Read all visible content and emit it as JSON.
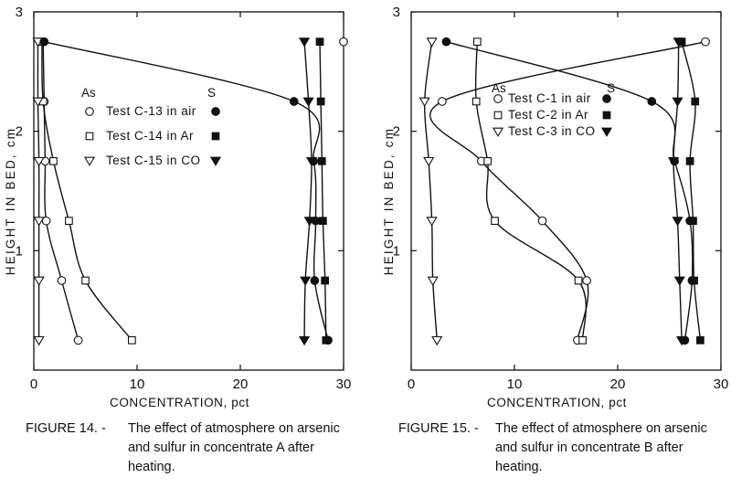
{
  "chart_data": [
    {
      "type": "line",
      "figure_label": "FIGURE 14. -",
      "caption": "The effect of atmosphere on arsenic and sulfur in concentrate A after heating.",
      "xlabel": "CONCENTRATION, pct",
      "ylabel": "HEIGHT IN BED, cm",
      "xlim": [
        0,
        30
      ],
      "ylim": [
        0,
        3
      ],
      "x_ticks": [
        0,
        10,
        20,
        30
      ],
      "y_ticks": [
        1,
        2,
        3
      ],
      "x_tick_labels": [
        "0",
        "10",
        "20",
        "30"
      ],
      "y_tick_labels": [
        "1",
        "2",
        "3"
      ],
      "legend": {
        "as_header": "As",
        "s_header": "S",
        "entries": [
          "Test C-13 in air",
          "Test C-14 in Ar",
          "Test C-15 in CO"
        ]
      },
      "series": [
        {
          "element": "As",
          "test": 0,
          "marker": "circle-open",
          "x": [
            0.9,
            1.0,
            1.1,
            1.2,
            2.7,
            4.3
          ],
          "y": [
            2.75,
            2.25,
            1.75,
            1.25,
            0.75,
            0.25
          ]
        },
        {
          "element": "As",
          "test": 1,
          "marker": "square-open",
          "x": [
            0.8,
            0.9,
            1.9,
            3.4,
            5.0,
            9.5
          ],
          "y": [
            2.75,
            2.25,
            1.75,
            1.25,
            0.75,
            0.25
          ]
        },
        {
          "element": "As",
          "test": 2,
          "marker": "triangle-open",
          "x": [
            0.4,
            0.4,
            0.5,
            0.5,
            0.5,
            0.5
          ],
          "y": [
            2.75,
            2.25,
            1.75,
            1.25,
            0.75,
            0.25
          ]
        },
        {
          "element": "S",
          "test": 0,
          "marker": "circle-filled",
          "x": [
            1.0,
            25.2,
            27.1,
            27.3,
            27.2,
            28.5
          ],
          "y": [
            2.75,
            2.25,
            1.75,
            1.25,
            0.75,
            0.25
          ]
        },
        {
          "element": "S",
          "test": 1,
          "marker": "square-filled",
          "x": [
            27.7,
            27.8,
            27.9,
            28.0,
            28.2,
            28.3
          ],
          "y": [
            2.75,
            2.25,
            1.75,
            1.25,
            0.75,
            0.25
          ]
        },
        {
          "element": "S",
          "test": 2,
          "marker": "triangle-filled",
          "x": [
            26.2,
            26.6,
            26.9,
            26.7,
            26.3,
            26.2
          ],
          "y": [
            2.75,
            2.25,
            1.75,
            1.25,
            0.75,
            0.25
          ]
        }
      ],
      "annotation_point": {
        "x": 30.0,
        "y": 2.75,
        "marker": "circle-open"
      }
    },
    {
      "type": "line",
      "figure_label": "FIGURE 15. -",
      "caption": "The effect of atmosphere on arsenic and sulfur in concentrate B after heating.",
      "xlabel": "CONCENTRATION, pct",
      "ylabel": "HEIGHT IN BED, cm",
      "xlim": [
        0,
        30
      ],
      "ylim": [
        0,
        3
      ],
      "x_ticks": [
        0,
        10,
        20,
        30
      ],
      "y_ticks": [
        1,
        2,
        3
      ],
      "x_tick_labels": [
        "0",
        "10",
        "20",
        "30"
      ],
      "y_tick_labels": [
        "1",
        "2",
        "3"
      ],
      "legend": {
        "as_header": "As",
        "s_header": "S",
        "entries": [
          "Test C-1 in air",
          "Test C-2 in Ar",
          "Test C-3 in CO"
        ]
      },
      "series": [
        {
          "element": "As",
          "test": 0,
          "marker": "circle-open",
          "x": [
            28.5,
            3.0,
            6.8,
            12.7,
            17.0,
            16.1
          ],
          "y": [
            2.75,
            2.25,
            1.75,
            1.25,
            0.75,
            0.25
          ]
        },
        {
          "element": "As",
          "test": 1,
          "marker": "square-open",
          "x": [
            6.4,
            6.3,
            7.4,
            8.1,
            16.2,
            16.6
          ],
          "y": [
            2.75,
            2.25,
            1.75,
            1.25,
            0.75,
            0.25
          ]
        },
        {
          "element": "As",
          "test": 2,
          "marker": "triangle-open",
          "x": [
            2.0,
            1.3,
            1.7,
            2.0,
            2.1,
            2.5
          ],
          "y": [
            2.75,
            2.25,
            1.75,
            1.25,
            0.75,
            0.25
          ]
        },
        {
          "element": "S",
          "test": 0,
          "marker": "circle-filled",
          "x": [
            3.4,
            23.3,
            25.5,
            27.0,
            27.2,
            26.5
          ],
          "y": [
            2.75,
            2.25,
            1.75,
            1.25,
            0.75,
            0.25
          ]
        },
        {
          "element": "S",
          "test": 1,
          "marker": "square-filled",
          "x": [
            26.2,
            27.5,
            27.0,
            27.3,
            27.4,
            28.0
          ],
          "y": [
            2.75,
            2.25,
            1.75,
            1.25,
            0.75,
            0.25
          ]
        },
        {
          "element": "S",
          "test": 2,
          "marker": "triangle-filled",
          "x": [
            25.9,
            25.8,
            25.4,
            25.8,
            26.0,
            26.2
          ],
          "y": [
            2.75,
            2.25,
            1.75,
            1.25,
            0.75,
            0.25
          ]
        }
      ]
    }
  ]
}
